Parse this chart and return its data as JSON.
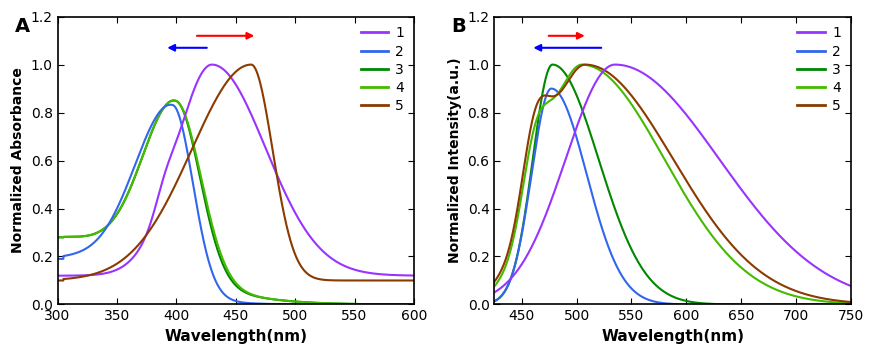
{
  "colors": {
    "1": "#9933FF",
    "2": "#3366EE",
    "3": "#008800",
    "4": "#44BB00",
    "5": "#8B3A00"
  },
  "legend_labels": [
    "1",
    "2",
    "3",
    "4",
    "5"
  ],
  "panel_A": {
    "title": "A",
    "xlabel": "Wavelength(nm)",
    "ylabel": "Normalized Absorbance",
    "xlim": [
      300,
      600
    ],
    "ylim": [
      0.0,
      1.2
    ],
    "xticks": [
      300,
      350,
      400,
      450,
      500,
      550,
      600
    ],
    "yticks": [
      0.0,
      0.2,
      0.4,
      0.6,
      0.8,
      1.0,
      1.2
    ]
  },
  "panel_B": {
    "title": "B",
    "xlabel": "Wavelength(nm)",
    "ylabel": "Normalized Intensity(a.u.)",
    "xlim": [
      425,
      750
    ],
    "ylim": [
      0.0,
      1.2
    ],
    "xticks": [
      450,
      500,
      550,
      600,
      650,
      700,
      750
    ],
    "yticks": [
      0.0,
      0.2,
      0.4,
      0.6,
      0.8,
      1.0,
      1.2
    ]
  },
  "figure_bg": "#ffffff"
}
